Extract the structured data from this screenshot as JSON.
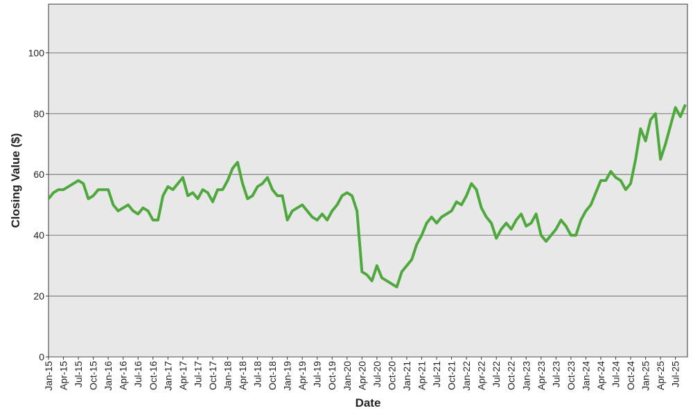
{
  "chart_data": {
    "type": "line",
    "x_label": "Date",
    "y_label": "Closing Value ($)",
    "categories": [
      "Jan-15",
      null,
      null,
      "Apr-15",
      null,
      null,
      "Jul-15",
      null,
      null,
      "Oct-15",
      null,
      null,
      "Jan-16",
      null,
      null,
      "Apr-16",
      null,
      null,
      "Jul-16",
      null,
      null,
      "Oct-16",
      null,
      null,
      "Jan-17",
      null,
      null,
      "Apr-17",
      null,
      null,
      "Jul-17",
      null,
      null,
      "Oct-17",
      null,
      null,
      "Jan-18",
      null,
      null,
      "Apr-18",
      null,
      null,
      "Jul-18",
      null,
      null,
      "Oct-18",
      null,
      null,
      "Jan-19",
      null,
      null,
      "Apr-19",
      null,
      null,
      "Jul-19",
      null,
      null,
      "Oct-19",
      null,
      null,
      "Jan-20",
      null,
      null,
      "Apr-20",
      null,
      null,
      "Jul-20",
      null,
      null,
      "Oct-20",
      null,
      null,
      "Jan-21",
      null,
      null,
      "Apr-21",
      null,
      null,
      "Jul-21",
      null,
      null,
      "Oct-21",
      null,
      null,
      "Jan-22",
      null,
      null,
      "Apr-22",
      null,
      null,
      "Jul-22",
      null,
      null,
      "Oct-22",
      null,
      null,
      "Jan-23",
      null,
      null,
      "Apr-23",
      null,
      null,
      "Jul-23",
      null,
      null,
      "Oct-23",
      null,
      null,
      "Jan-24",
      null,
      null,
      "Apr-24",
      null,
      null,
      "Jul-24",
      null,
      null,
      "Oct-24",
      null,
      null,
      "Jan-25",
      null,
      null,
      "Apr-25",
      null,
      null,
      "Jul-25",
      null,
      null
    ],
    "series": [
      {
        "color": "#4ea93c",
        "values": [
          52,
          54,
          55,
          55,
          56,
          57,
          58,
          57,
          52,
          53,
          55,
          55,
          55,
          50,
          48,
          49,
          50,
          48,
          47,
          49,
          48,
          45,
          45,
          53,
          56,
          55,
          57,
          59,
          53,
          54,
          52,
          55,
          54,
          51,
          55,
          55,
          58,
          62,
          64,
          57,
          52,
          53,
          56,
          57,
          59,
          55,
          53,
          53,
          45,
          48,
          49,
          50,
          48,
          46,
          45,
          47,
          45,
          48,
          50,
          53,
          54,
          53,
          48,
          28,
          27,
          25,
          30,
          26,
          25,
          24,
          23,
          28,
          30,
          32,
          37,
          40,
          44,
          46,
          44,
          46,
          47,
          48,
          51,
          50,
          53,
          57,
          55,
          49,
          46,
          44,
          39,
          42,
          44,
          42,
          45,
          47,
          43,
          44,
          47,
          40,
          38,
          40,
          42,
          45,
          43,
          40,
          40,
          45,
          48,
          50,
          54,
          58,
          58,
          61,
          59,
          58,
          55,
          57,
          65,
          75,
          71,
          78,
          80,
          65,
          70,
          76,
          82,
          79,
          83
        ]
      }
    ],
    "ylim": [
      0,
      116
    ],
    "yticks": [
      0,
      20,
      40,
      60,
      80,
      100
    ],
    "grid": true,
    "background": "#e8e8e8"
  }
}
